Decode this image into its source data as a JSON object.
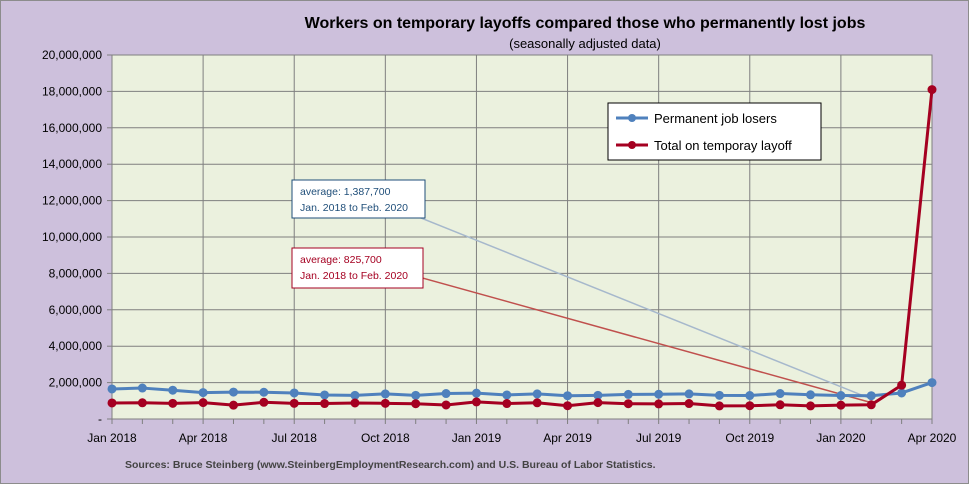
{
  "chart_data": {
    "type": "line",
    "title": "Workers on temporary layoffs compared those who permanently lost jobs",
    "subtitle": "(seasonally adjusted data)",
    "source": "Sources:  Bruce Steinberg (www.SteinbergEmploymentResearch.com)  and  U.S. Bureau of Labor Statistics.",
    "ylim": [
      0,
      20000000
    ],
    "yticks": [
      {
        "value": 0,
        "label": "-"
      },
      {
        "value": 2000000,
        "label": "2,000,000"
      },
      {
        "value": 4000000,
        "label": "4,000,000"
      },
      {
        "value": 6000000,
        "label": "6,000,000"
      },
      {
        "value": 8000000,
        "label": "8,000,000"
      },
      {
        "value": 10000000,
        "label": "10,000,000"
      },
      {
        "value": 12000000,
        "label": "12,000,000"
      },
      {
        "value": 14000000,
        "label": "14,000,000"
      },
      {
        "value": 16000000,
        "label": "16,000,000"
      },
      {
        "value": 18000000,
        "label": "18,000,000"
      },
      {
        "value": 20000000,
        "label": "20,000,000"
      }
    ],
    "xticks": [
      {
        "index": 0,
        "label": "Jan 2018"
      },
      {
        "index": 3,
        "label": "Apr 2018"
      },
      {
        "index": 6,
        "label": "Jul 2018"
      },
      {
        "index": 9,
        "label": "Oct 2018"
      },
      {
        "index": 12,
        "label": "Jan 2019"
      },
      {
        "index": 15,
        "label": "Apr 2019"
      },
      {
        "index": 18,
        "label": "Jul 2019"
      },
      {
        "index": 21,
        "label": "Oct 2019"
      },
      {
        "index": 24,
        "label": "Jan 2020"
      },
      {
        "index": 27,
        "label": "Apr 2020"
      }
    ],
    "grid": true,
    "legend_position": "top-right",
    "series": [
      {
        "name": "Permanent job losers",
        "color": "#4f81bd",
        "values": [
          1650000,
          1700000,
          1580000,
          1450000,
          1480000,
          1470000,
          1430000,
          1320000,
          1300000,
          1380000,
          1300000,
          1400000,
          1420000,
          1320000,
          1380000,
          1280000,
          1300000,
          1350000,
          1360000,
          1380000,
          1300000,
          1290000,
          1400000,
          1330000,
          1290000,
          1280000,
          1430000,
          2000000
        ]
      },
      {
        "name": "Total on temporay layoff",
        "color": "#a50021",
        "values": [
          880000,
          890000,
          860000,
          900000,
          760000,
          920000,
          860000,
          850000,
          880000,
          860000,
          840000,
          770000,
          940000,
          850000,
          890000,
          730000,
          900000,
          840000,
          830000,
          850000,
          720000,
          730000,
          780000,
          720000,
          760000,
          780000,
          1860000,
          18100000
        ]
      }
    ],
    "annotations": [
      {
        "line1": "average: 1,387,700",
        "line2": "Jan. 2018 to Feb. 2020",
        "color": "#1f4e79",
        "arrow_color": "#a6b8cc",
        "arrow_from_index": 25,
        "arrow_from_value": 1100000,
        "arrow_to_index": 8.6,
        "arrow_to_value": 12100000
      },
      {
        "line1": "average: 825,700",
        "line2": "Jan. 2018 to Feb. 2020",
        "color": "#a50021",
        "arrow_color": "#c0504d",
        "arrow_from_index": 25,
        "arrow_from_value": 900000,
        "arrow_to_index": 8.6,
        "arrow_to_value": 8500000
      }
    ]
  }
}
